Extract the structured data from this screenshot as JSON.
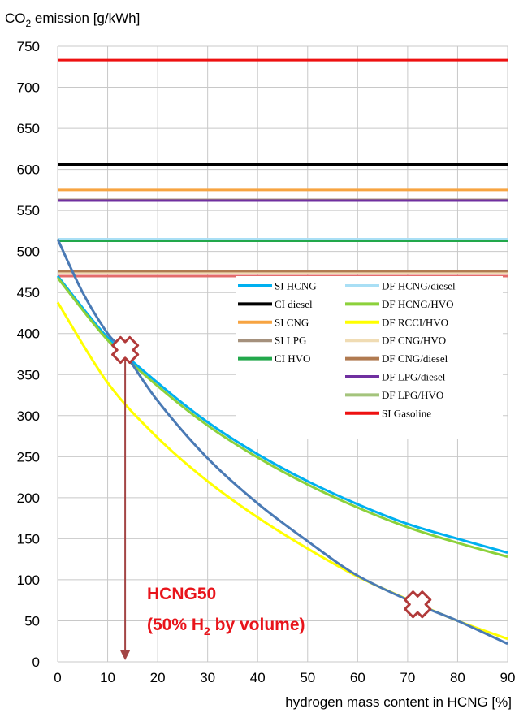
{
  "chart_data": {
    "type": "line",
    "ylabel_main": "CO",
    "ylabel_sub": "2",
    "ylabel_rest": " emission [g/kWh]",
    "xlabel": "hydrogen mass content in HCNG [%]",
    "xlim": [
      0,
      90
    ],
    "ylim": [
      0,
      750
    ],
    "x_ticks": [
      "0",
      "10",
      "20",
      "30",
      "40",
      "50",
      "60",
      "70",
      "80",
      "90"
    ],
    "y_ticks": [
      "0",
      "50",
      "100",
      "150",
      "200",
      "250",
      "300",
      "350",
      "400",
      "450",
      "500",
      "550",
      "600",
      "650",
      "700",
      "750"
    ],
    "grid": true,
    "legend_position": "right",
    "series": [
      {
        "name": "SI HCNG",
        "color": "#00b0f0",
        "kind": "curve",
        "x": [
          0,
          10,
          20,
          30,
          40,
          50,
          60,
          70,
          80,
          90
        ],
        "y": [
          470,
          395,
          340,
          292,
          253,
          220,
          192,
          168,
          150,
          133
        ]
      },
      {
        "name": "CI diesel",
        "color": "#000000",
        "kind": "constant",
        "y": 606
      },
      {
        "name": "SI CNG",
        "color": "#f7a441",
        "kind": "constant",
        "y": 575
      },
      {
        "name": "SI LPG",
        "color": "#a5917d",
        "kind": "constant",
        "y": 563
      },
      {
        "name": "CI HVO",
        "color": "#22a84b",
        "kind": "constant",
        "y": 513
      },
      {
        "name": "DF HCNG/diesel",
        "color": "#a9dff5",
        "kind": "constant",
        "y": 515
      },
      {
        "name": "DF HCNG/HVO",
        "color": "#8cd13b",
        "kind": "curve",
        "x": [
          0,
          10,
          20,
          30,
          40,
          50,
          60,
          70,
          80,
          90
        ],
        "y": [
          468,
          392,
          336,
          288,
          249,
          216,
          188,
          164,
          145,
          128
        ]
      },
      {
        "name": "DF RCCI/HVO",
        "color": "#ffff00",
        "kind": "curve",
        "x": [
          0,
          10,
          20,
          30,
          40,
          50,
          60,
          70,
          80,
          90
        ],
        "y": [
          438,
          340,
          273,
          220,
          176,
          138,
          104,
          76,
          50,
          28
        ]
      },
      {
        "name": "DF CNG/HVO",
        "color": "#f0dcb4",
        "kind": "constant",
        "y": 474
      },
      {
        "name": "DF CNG/diesel",
        "color": "#b07a50",
        "kind": "constant",
        "y": 476
      },
      {
        "name": "DF LPG/diesel",
        "color": "#7030a0",
        "kind": "constant",
        "y": 562
      },
      {
        "name": "DF LPG/HVO",
        "color": "#a4c47c",
        "kind": "constant",
        "y": 470
      },
      {
        "name": "SI Gasoline",
        "color": "#ee1111",
        "kind": "constant",
        "y": 733
      }
    ],
    "unlabeled_series": [
      {
        "color": "#4a7ab5",
        "kind": "curve",
        "x": [
          0,
          5,
          10,
          13,
          20,
          30,
          40,
          50,
          60,
          72,
          80,
          90
        ],
        "y": [
          515,
          450,
          400,
          380,
          318,
          248,
          193,
          147,
          105,
          70,
          50,
          22
        ]
      },
      {
        "color": "#e46c6c",
        "kind": "constant",
        "y": 470
      }
    ],
    "markers": [
      {
        "x": 13.5,
        "y": 380
      },
      {
        "x": 72,
        "y": 70
      }
    ],
    "arrow": {
      "x": 13.5,
      "y_from": 380,
      "y_to": 0
    },
    "annotation": {
      "line1": "HCNG50",
      "line2_pre": "(50% H",
      "line2_sub": "2",
      "line2_post": " by volume)"
    }
  }
}
